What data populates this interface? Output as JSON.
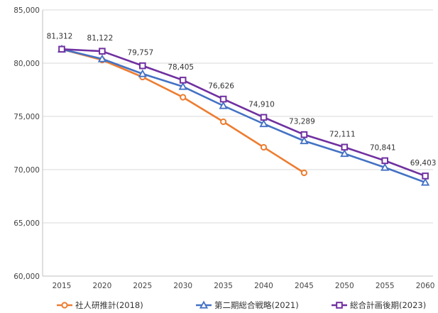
{
  "chart_data": {
    "type": "line",
    "title": "",
    "xlabel": "",
    "ylabel": "",
    "ylim": [
      60000,
      85000
    ],
    "y_ticks": [
      60000,
      65000,
      70000,
      75000,
      80000,
      85000
    ],
    "y_tick_labels": [
      "60,000",
      "65,000",
      "70,000",
      "75,000",
      "80,000",
      "85,000"
    ],
    "x": [
      "2015",
      "2020",
      "2025",
      "2030",
      "2035",
      "2040",
      "2045",
      "2050",
      "2055",
      "2060"
    ],
    "grid": "horizontal",
    "legend_position": "bottom",
    "series": [
      {
        "name": "社人研推計(2018)",
        "color": "#ED7D31",
        "marker": "circle",
        "values": [
          81312,
          80300,
          78700,
          76800,
          74500,
          72100,
          69700,
          null,
          null,
          null
        ],
        "labels": []
      },
      {
        "name": "第二期総合戦略(2021)",
        "color": "#4472C4",
        "marker": "triangle",
        "values": [
          81312,
          80400,
          79000,
          77800,
          76000,
          74300,
          72700,
          71500,
          70200,
          68800
        ],
        "labels": []
      },
      {
        "name": "総合計画後期(2023)",
        "color": "#7030A0",
        "marker": "square",
        "values": [
          81312,
          81122,
          79757,
          78405,
          76626,
          74910,
          73289,
          72111,
          70841,
          69403
        ],
        "labels": [
          "81,312",
          "81,122",
          "79,757",
          "78,405",
          "76,626",
          "74,910",
          "73,289",
          "72,111",
          "70,841",
          "69,403"
        ]
      }
    ]
  }
}
